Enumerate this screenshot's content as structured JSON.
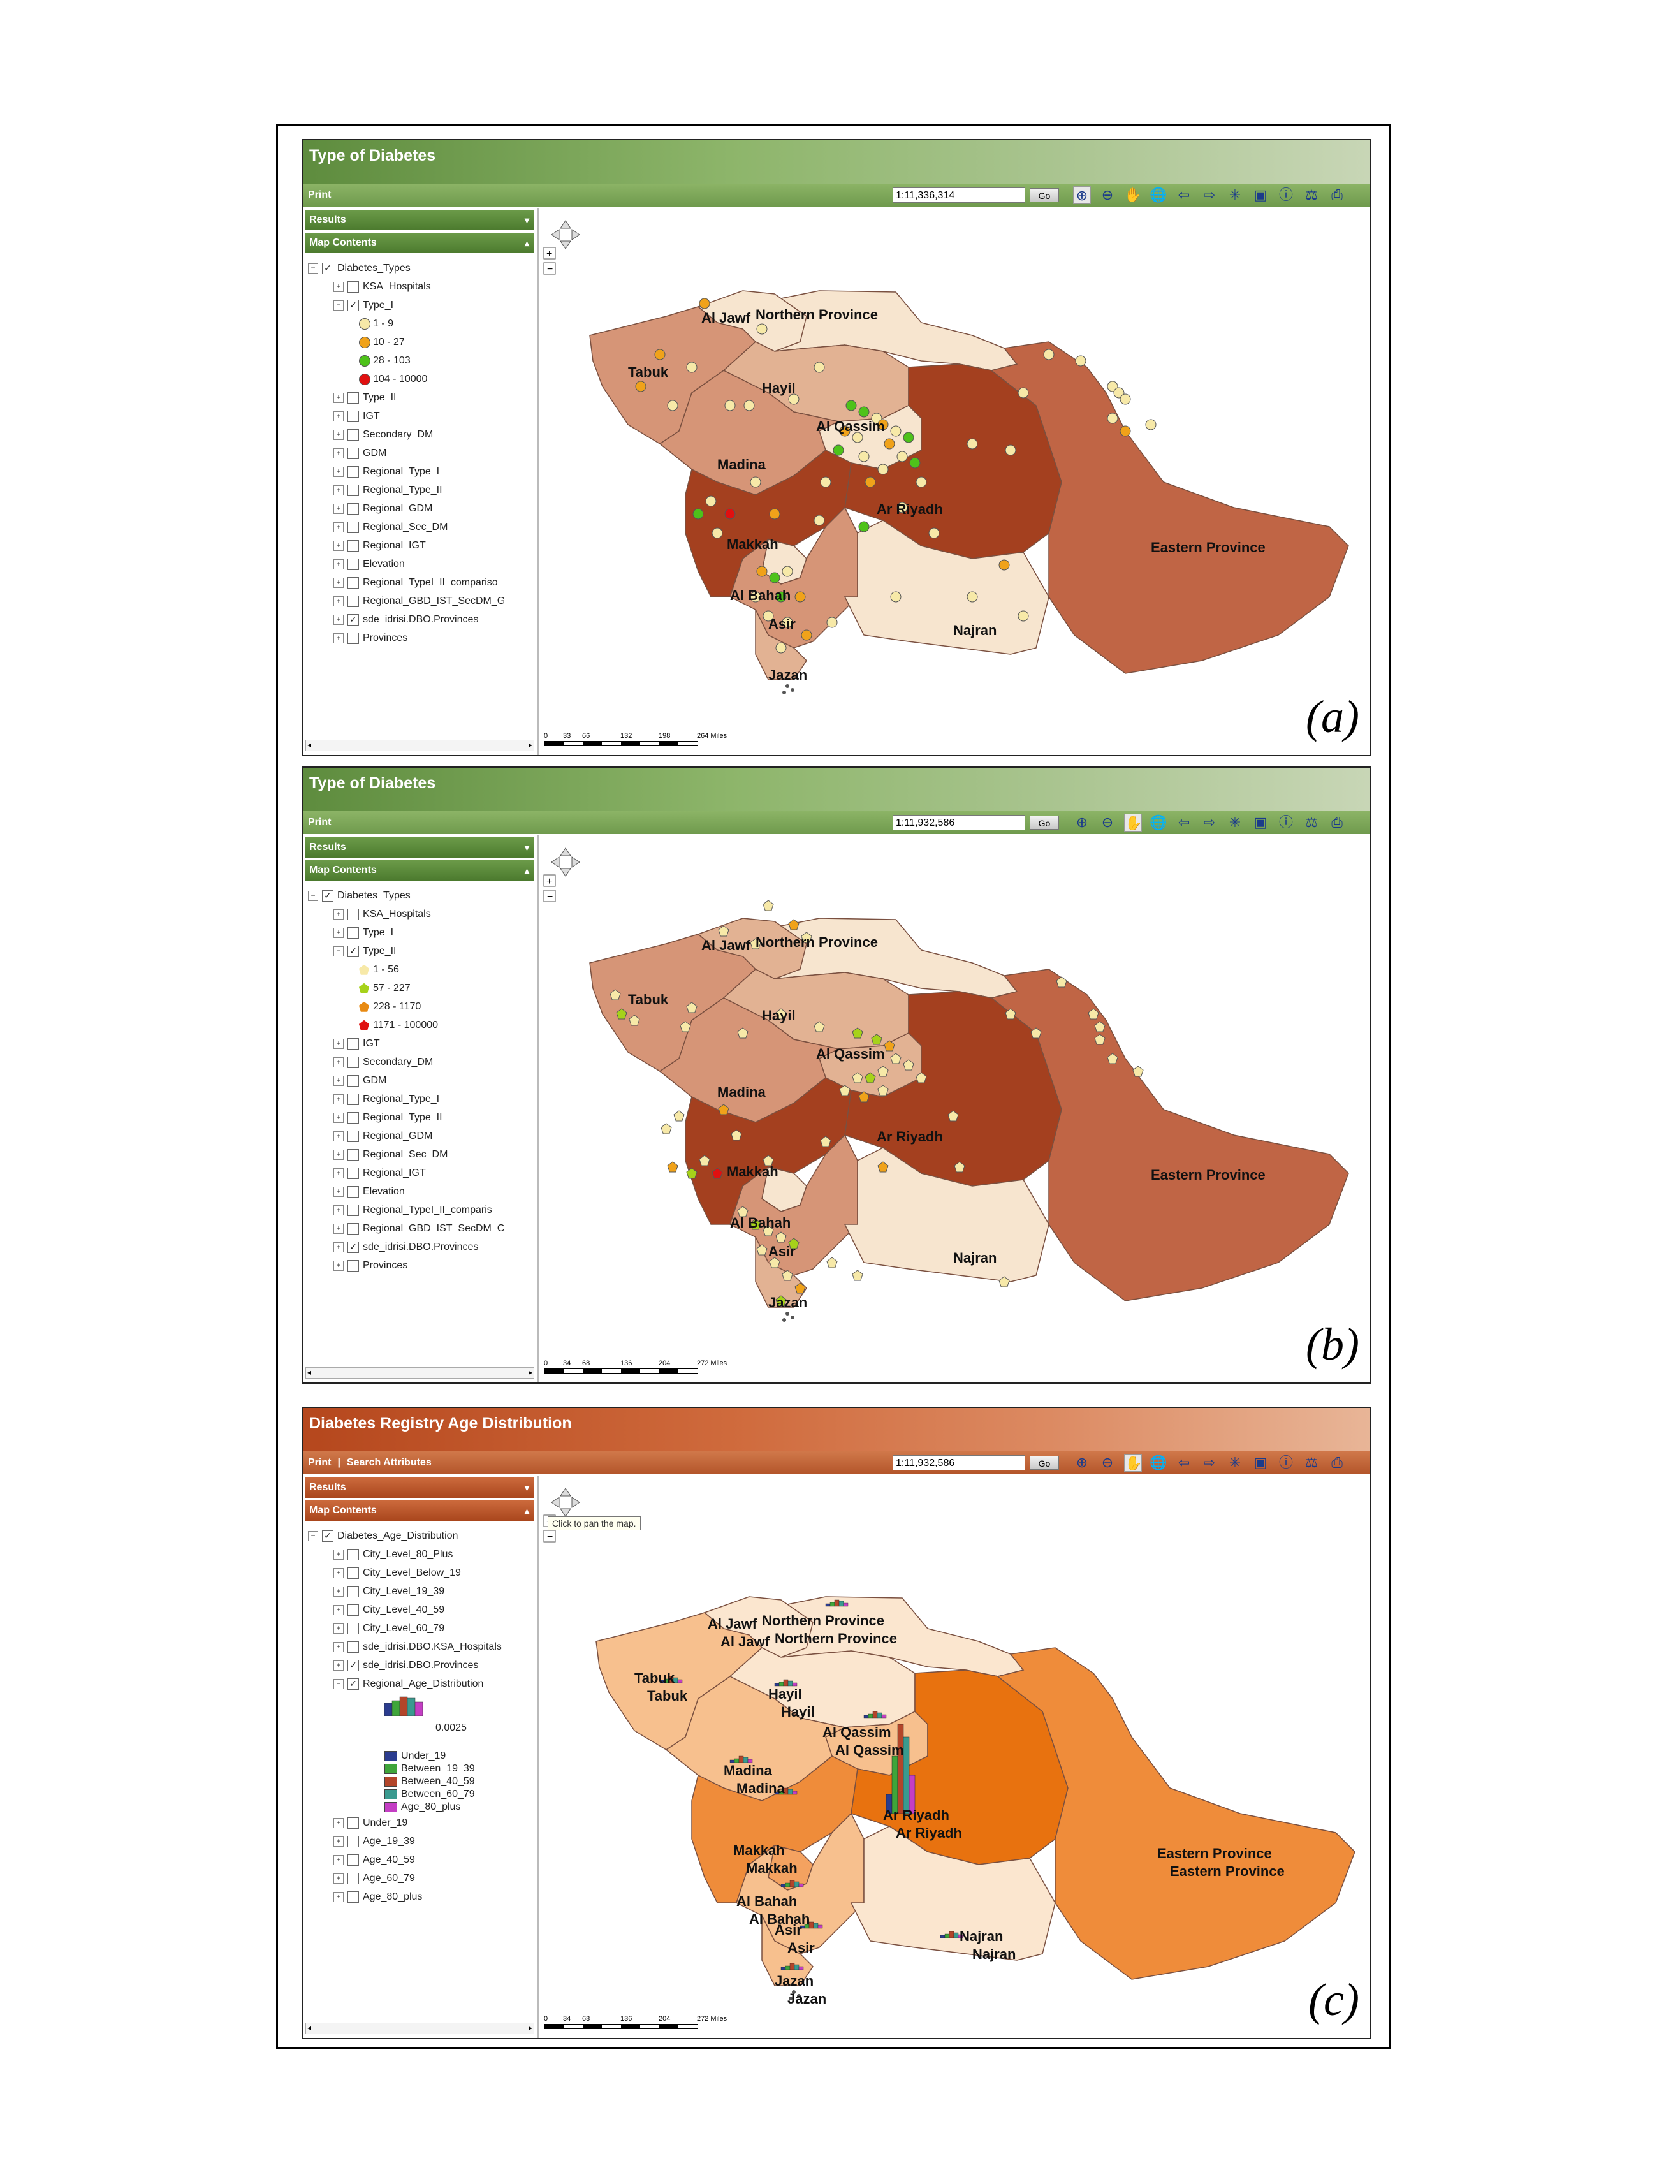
{
  "header_dots": "- - -",
  "panels": [
    {
      "title": "Type of Diabetes",
      "toolbar_links": [
        "Print"
      ],
      "scale": "1:11,336,314",
      "go": "Go",
      "results": "Results",
      "map_contents": "Map Contents",
      "letter": "(a)",
      "scale_ticks": [
        "0",
        "33",
        "66",
        "132",
        "198",
        "264 Miles"
      ],
      "tree": [
        {
          "level": 0,
          "exp": "⊟",
          "check": true,
          "label": "Diabetes_Types"
        },
        {
          "level": 1,
          "exp": "⊞",
          "check": false,
          "label": "KSA_Hospitals"
        },
        {
          "level": 1,
          "exp": "⊟",
          "check": true,
          "label": "Type_I"
        },
        {
          "level": 2,
          "legend": "dot",
          "color": "#f7e9a8",
          "label": "1 - 9"
        },
        {
          "level": 2,
          "legend": "dot",
          "color": "#f0a21a",
          "label": "10 - 27"
        },
        {
          "level": 2,
          "legend": "dot",
          "color": "#4ec21a",
          "label": "28 - 103"
        },
        {
          "level": 2,
          "legend": "dot",
          "color": "#e01010",
          "label": "104 - 10000"
        },
        {
          "level": 1,
          "exp": "⊞",
          "check": false,
          "label": "Type_II"
        },
        {
          "level": 1,
          "exp": "⊞",
          "check": false,
          "label": "IGT"
        },
        {
          "level": 1,
          "exp": "⊞",
          "check": false,
          "label": "Secondary_DM"
        },
        {
          "level": 1,
          "exp": "⊞",
          "check": false,
          "label": "GDM"
        },
        {
          "level": 1,
          "exp": "⊞",
          "check": false,
          "label": "Regional_Type_I"
        },
        {
          "level": 1,
          "exp": "⊞",
          "check": false,
          "label": "Regional_Type_II"
        },
        {
          "level": 1,
          "exp": "⊞",
          "check": false,
          "label": "Regional_GDM"
        },
        {
          "level": 1,
          "exp": "⊞",
          "check": false,
          "label": "Regional_Sec_DM"
        },
        {
          "level": 1,
          "exp": "⊞",
          "check": false,
          "label": "Regional_IGT"
        },
        {
          "level": 1,
          "exp": "⊞",
          "check": false,
          "label": "Elevation"
        },
        {
          "level": 1,
          "exp": "⊞",
          "check": false,
          "label": "Regional_TypeI_II_compariso"
        },
        {
          "level": 1,
          "exp": "⊞",
          "check": false,
          "label": "Regional_GBD_IST_SecDM_G"
        },
        {
          "level": 1,
          "exp": "⊞",
          "check": true,
          "label": "sde_idrisi.DBO.Provinces"
        },
        {
          "level": 1,
          "exp": "⊞",
          "check": false,
          "label": "Provinces"
        }
      ],
      "provinces": [
        "Al Jawf",
        "Northern Province",
        "Tabuk",
        "Hayil",
        "Al Qassim",
        "Madina",
        "Ar Riyadh",
        "Eastern Province",
        "Makkah",
        "Al Bahah",
        "Asir",
        "Najran",
        "Jazan"
      ]
    },
    {
      "title": "Type of Diabetes",
      "toolbar_links": [
        "Print"
      ],
      "scale": "1:11,932,586",
      "go": "Go",
      "results": "Results",
      "map_contents": "Map Contents",
      "letter": "(b)",
      "scale_ticks": [
        "0",
        "34",
        "68",
        "136",
        "204",
        "272 Miles"
      ],
      "tree": [
        {
          "level": 0,
          "exp": "⊟",
          "check": true,
          "label": "Diabetes_Types"
        },
        {
          "level": 1,
          "exp": "⊞",
          "check": false,
          "label": "KSA_Hospitals"
        },
        {
          "level": 1,
          "exp": "⊞",
          "check": false,
          "label": "Type_I"
        },
        {
          "level": 1,
          "exp": "⊟",
          "check": true,
          "label": "Type_II"
        },
        {
          "level": 2,
          "legend": "pent",
          "color": "#f7e9a8",
          "label": "1 - 56"
        },
        {
          "level": 2,
          "legend": "pent",
          "color": "#a6d21a",
          "label": "57 - 227"
        },
        {
          "level": 2,
          "legend": "pent",
          "color": "#e88a12",
          "label": "228 - 1170"
        },
        {
          "level": 2,
          "legend": "pent",
          "color": "#e01010",
          "label": "1171 - 100000"
        },
        {
          "level": 1,
          "exp": "⊞",
          "check": false,
          "label": "IGT"
        },
        {
          "level": 1,
          "exp": "⊞",
          "check": false,
          "label": "Secondary_DM"
        },
        {
          "level": 1,
          "exp": "⊞",
          "check": false,
          "label": "GDM"
        },
        {
          "level": 1,
          "exp": "⊞",
          "check": false,
          "label": "Regional_Type_I"
        },
        {
          "level": 1,
          "exp": "⊞",
          "check": false,
          "label": "Regional_Type_II"
        },
        {
          "level": 1,
          "exp": "⊞",
          "check": false,
          "label": "Regional_GDM"
        },
        {
          "level": 1,
          "exp": "⊞",
          "check": false,
          "label": "Regional_Sec_DM"
        },
        {
          "level": 1,
          "exp": "⊞",
          "check": false,
          "label": "Regional_IGT"
        },
        {
          "level": 1,
          "exp": "⊞",
          "check": false,
          "label": "Elevation"
        },
        {
          "level": 1,
          "exp": "⊞",
          "check": false,
          "label": "Regional_TypeI_II_comparis"
        },
        {
          "level": 1,
          "exp": "⊞",
          "check": false,
          "label": "Regional_GBD_IST_SecDM_C"
        },
        {
          "level": 1,
          "exp": "⊞",
          "check": true,
          "label": "sde_idrisi.DBO.Provinces"
        },
        {
          "level": 1,
          "exp": "⊞",
          "check": false,
          "label": "Provinces"
        }
      ],
      "provinces": [
        "Al Jawf",
        "Northern Province",
        "Tabuk",
        "Hayil",
        "Al Qassim",
        "Madina",
        "Ar Riyadh",
        "Eastern Province",
        "Makkah",
        "Al Bahah",
        "Asir",
        "Najran",
        "Jazan"
      ]
    },
    {
      "title": "Diabetes Registry Age Distribution",
      "toolbar_links": [
        "Print",
        "|",
        "Search Attributes"
      ],
      "scale": "1:11,932,586",
      "go": "Go",
      "results": "Results",
      "map_contents": "Map Contents",
      "letter": "(c)",
      "tooltip": "Click to pan the map.",
      "scale_ticks": [
        "0",
        "34",
        "68",
        "136",
        "204",
        "272 Miles"
      ],
      "chart_scale_label": "0.0025",
      "tree": [
        {
          "level": 0,
          "exp": "⊟",
          "check": true,
          "label": "Diabetes_Age_Distribution"
        },
        {
          "level": 1,
          "exp": "⊞",
          "check": false,
          "label": "City_Level_80_Plus"
        },
        {
          "level": 1,
          "exp": "⊞",
          "check": false,
          "label": "City_Level_Below_19"
        },
        {
          "level": 1,
          "exp": "⊞",
          "check": false,
          "label": "City_Level_19_39"
        },
        {
          "level": 1,
          "exp": "⊞",
          "check": false,
          "label": "City_Level_40_59"
        },
        {
          "level": 1,
          "exp": "⊞",
          "check": false,
          "label": "City_Level_60_79"
        },
        {
          "level": 1,
          "exp": "⊞",
          "check": false,
          "label": "sde_idrisi.DBO.KSA_Hospitals"
        },
        {
          "level": 1,
          "exp": "⊞",
          "check": true,
          "label": "sde_idrisi.DBO.Provinces"
        },
        {
          "level": 1,
          "exp": "⊟",
          "check": true,
          "label": "Regional_Age_Distribution"
        }
      ],
      "age_legend": [
        {
          "color": "#2b3c8f",
          "label": "Under_19"
        },
        {
          "color": "#3fa53a",
          "label": "Between_19_39"
        },
        {
          "color": "#b3452a",
          "label": "Between_40_59"
        },
        {
          "color": "#3a9a8f",
          "label": "Between_60_79"
        },
        {
          "color": "#c43ec4",
          "label": "Age_80_plus"
        }
      ],
      "tree_after": [
        {
          "level": 1,
          "exp": "⊞",
          "check": false,
          "label": "Under_19"
        },
        {
          "level": 1,
          "exp": "⊞",
          "check": false,
          "label": "Age_19_39"
        },
        {
          "level": 1,
          "exp": "⊞",
          "check": false,
          "label": "Age_40_59"
        },
        {
          "level": 1,
          "exp": "⊞",
          "check": false,
          "label": "Age_60_79"
        },
        {
          "level": 1,
          "exp": "⊞",
          "check": false,
          "label": "Age_80_plus"
        }
      ],
      "provinces": [
        "Al Jawf",
        "Northern Province",
        "Tabuk",
        "Hayil",
        "Al Qassim",
        "Madina",
        "Ar Riyadh",
        "Eastern Province",
        "Makkah",
        "Al Bahah",
        "Asir",
        "Najran",
        "Jazan"
      ]
    }
  ],
  "colors": {
    "a": {
      "light": "#f7e5cf",
      "mid1": "#e2b293",
      "mid2": "#d69577",
      "dark": "#c16a4c",
      "darkest": "#a4401f",
      "eastern": "#c06545"
    },
    "b": {
      "light": "#f7e5cf",
      "mid1": "#e2b293",
      "mid2": "#d69577",
      "dark": "#c16a4c",
      "darkest": "#a4401f",
      "eastern": "#c06545"
    },
    "c": {
      "light": "#fbe6cf",
      "mid1": "#f7c08e",
      "mid2": "#f4a260",
      "dark": "#ef8c3a",
      "darkest": "#e8720f",
      "eastern": "#f08e3c"
    }
  }
}
